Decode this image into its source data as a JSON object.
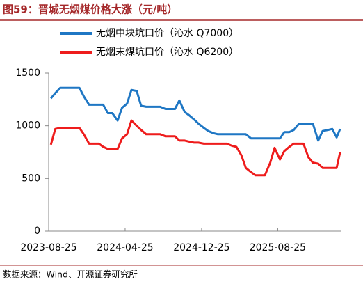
{
  "chart_data": {
    "type": "line",
    "title": "图59：晋城无烟煤价格大涨（元/吨）",
    "source": "数据来源：Wind、开源证券研究所",
    "x": [
      "2023-09-01",
      "2023-09-15",
      "2023-10-01",
      "2023-10-15",
      "2023-11-01",
      "2023-11-15",
      "2023-12-01",
      "2023-12-15",
      "2024-01-01",
      "2024-01-15",
      "2024-02-01",
      "2024-02-15",
      "2024-03-01",
      "2024-03-15",
      "2024-04-01",
      "2024-04-15",
      "2024-05-01",
      "2024-05-15",
      "2024-06-01",
      "2024-06-15",
      "2024-07-01",
      "2024-07-15",
      "2024-08-01",
      "2024-08-15",
      "2024-09-01",
      "2024-09-15",
      "2024-10-01",
      "2024-10-15",
      "2024-11-01",
      "2024-11-15",
      "2024-12-01",
      "2024-12-15",
      "2025-01-01",
      "2025-01-15",
      "2025-02-01",
      "2025-02-15",
      "2025-03-01",
      "2025-03-15",
      "2025-04-01",
      "2025-04-15",
      "2025-05-01",
      "2025-05-15",
      "2025-06-01",
      "2025-06-15",
      "2025-07-01",
      "2025-07-15",
      "2025-08-01",
      "2025-08-15",
      "2025-09-01",
      "2025-09-15",
      "2025-10-01",
      "2025-10-15",
      "2025-11-01",
      "2025-11-15",
      "2025-12-01",
      "2025-12-15",
      "2026-01-01",
      "2026-01-15",
      "2026-02-01",
      "2026-02-15",
      "2026-03-01",
      "2026-03-12"
    ],
    "series": [
      {
        "name": "无烟中块坑口价（沁水 Q7000）",
        "color": "#1f77c4",
        "values": [
          1260,
          1310,
          1360,
          1360,
          1360,
          1360,
          1360,
          1280,
          1200,
          1200,
          1200,
          1200,
          1120,
          1120,
          1050,
          1170,
          1210,
          1340,
          1330,
          1190,
          1180,
          1180,
          1180,
          1180,
          1160,
          1160,
          1160,
          1240,
          1130,
          1100,
          1060,
          1020,
          980,
          950,
          930,
          920,
          920,
          920,
          920,
          920,
          920,
          920,
          880,
          880,
          880,
          880,
          880,
          880,
          880,
          940,
          940,
          960,
          1020,
          1020,
          1020,
          1020,
          860,
          950,
          960,
          970,
          890,
          970
        ]
      },
      {
        "name": "无烟末煤坑口价（沁水 Q6200）",
        "color": "#ee1c1c",
        "values": [
          820,
          970,
          980,
          980,
          980,
          980,
          980,
          920,
          830,
          830,
          830,
          800,
          780,
          780,
          780,
          880,
          920,
          1050,
          1000,
          960,
          920,
          920,
          920,
          920,
          900,
          900,
          900,
          860,
          860,
          850,
          840,
          840,
          830,
          830,
          830,
          830,
          830,
          830,
          810,
          800,
          720,
          600,
          560,
          530,
          530,
          530,
          650,
          790,
          680,
          760,
          800,
          830,
          830,
          830,
          700,
          650,
          640,
          600,
          600,
          600,
          600,
          750
        ]
      }
    ],
    "xlim": [
      "2023-08-25",
      "2026-03-14"
    ],
    "xticks": [
      "2023-08-25",
      "2024-04-25",
      "2024-12-25",
      "2025-08-25"
    ],
    "ylim": [
      0,
      1500
    ],
    "yticks": [
      0,
      500,
      1000,
      1500
    ],
    "grid": false,
    "legend": "top-left"
  }
}
